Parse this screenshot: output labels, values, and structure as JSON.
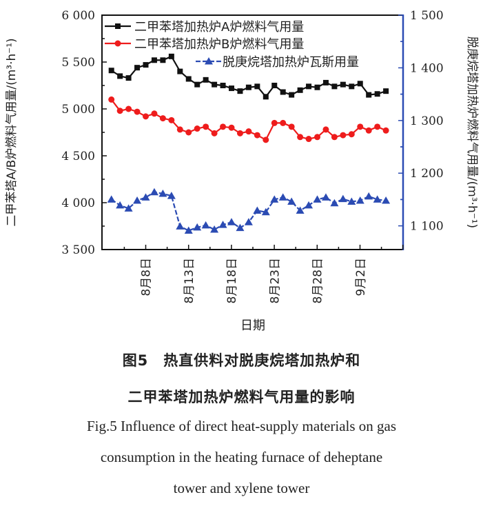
{
  "chart_data": {
    "type": "line",
    "xlabel": "日期",
    "x_tick_labels": [
      "8月8日",
      "8月13日",
      "8月18日",
      "8月23日",
      "8月28日",
      "9月2日"
    ],
    "x_tick_dates": [
      "08-08",
      "08-13",
      "08-18",
      "08-23",
      "08-28",
      "09-02"
    ],
    "x": [
      "08-04",
      "08-05",
      "08-06",
      "08-07",
      "08-08",
      "08-09",
      "08-10",
      "08-11",
      "08-12",
      "08-13",
      "08-14",
      "08-15",
      "08-16",
      "08-17",
      "08-18",
      "08-19",
      "08-20",
      "08-21",
      "08-22",
      "08-23",
      "08-24",
      "08-25",
      "08-26",
      "08-27",
      "08-28",
      "08-29",
      "08-30",
      "08-31",
      "09-01",
      "09-02",
      "09-03",
      "09-04",
      "09-05"
    ],
    "y_left": {
      "label": "二甲苯塔A/B炉燃料气用量/(m³·h⁻¹)",
      "ylim": [
        3500,
        6000
      ],
      "tick_labels": [
        "3 500",
        "4 000",
        "4 500",
        "5 000",
        "5 500",
        "6 000"
      ],
      "ticks": [
        3500,
        4000,
        4500,
        5000,
        5500,
        6000
      ]
    },
    "y_right": {
      "label": "脱庚烷塔加热炉燃料气用量/(m³·h⁻¹)",
      "ylim": [
        1055,
        1500
      ],
      "tick_labels": [
        "1 100",
        "1 200",
        "1 300",
        "1 400",
        "1 500"
      ],
      "ticks": [
        1100,
        1200,
        1300,
        1400,
        1500
      ],
      "color": "#2b4bb3"
    },
    "legend_placement": "top-left",
    "grid": false,
    "series": [
      {
        "name": "二甲苯塔加热炉A炉燃料气用量",
        "axis": "left",
        "color": "#111111",
        "marker": "square",
        "values": [
          5410,
          5350,
          5330,
          5440,
          5470,
          5520,
          5520,
          5560,
          5400,
          5320,
          5260,
          5310,
          5260,
          5250,
          5220,
          5190,
          5230,
          5240,
          5130,
          5250,
          5180,
          5150,
          5200,
          5240,
          5230,
          5280,
          5240,
          5260,
          5240,
          5270,
          5150,
          5160,
          5190
        ]
      },
      {
        "name": "二甲苯塔加热炉B炉燃料气用量",
        "axis": "left",
        "color": "#ee1c1c",
        "marker": "circle",
        "values": [
          5100,
          4980,
          5000,
          4970,
          4920,
          4950,
          4900,
          4880,
          4780,
          4750,
          4790,
          4810,
          4740,
          4810,
          4800,
          4740,
          4760,
          4720,
          4670,
          4850,
          4850,
          4810,
          4700,
          4680,
          4700,
          4780,
          4700,
          4720,
          4730,
          4810,
          4770,
          4810,
          4770
        ]
      },
      {
        "name": "脱庚烷塔加热炉瓦斯用量",
        "axis": "right",
        "color": "#2b4bb3",
        "marker": "triangle",
        "dash": true,
        "values": [
          1150,
          1139,
          1133,
          1148,
          1154,
          1164,
          1161,
          1157,
          1099,
          1091,
          1097,
          1101,
          1093,
          1102,
          1107,
          1096,
          1107,
          1129,
          1126,
          1150,
          1154,
          1146,
          1129,
          1139,
          1150,
          1154,
          1143,
          1151,
          1146,
          1148,
          1156,
          1150,
          1148
        ]
      }
    ]
  },
  "caption": {
    "cn_line1": "图5　热直供料对脱庚烷塔加热炉和",
    "cn_line2": "二甲苯塔加热炉燃料气用量的影响",
    "en_line1": "Fig.5  Influence of direct heat-supply materials on gas",
    "en_line2": "consumption in the heating furnace of deheptane",
    "en_line3": "tower and xylene tower"
  }
}
